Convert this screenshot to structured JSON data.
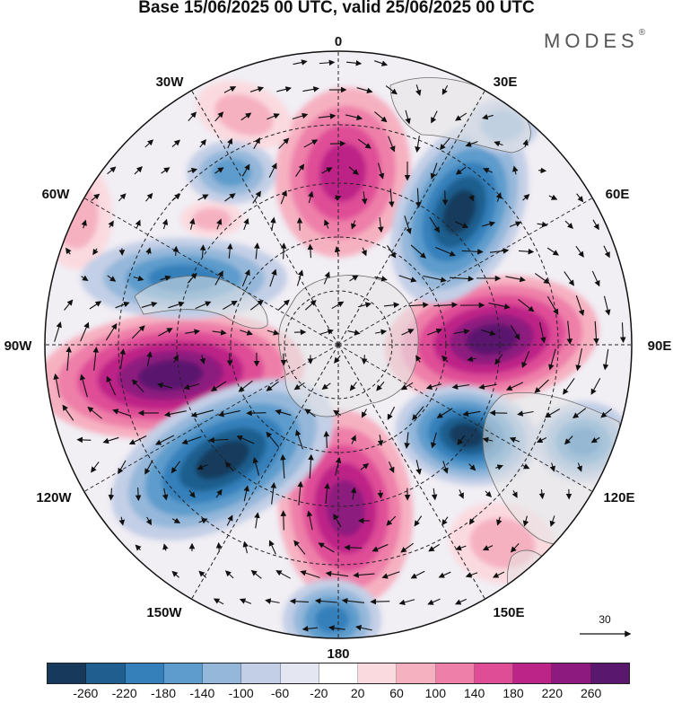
{
  "title": "Base 15/06/2025 00 UTC, valid 25/06/2025 00 UTC",
  "brand": {
    "name": "MODES",
    "mark": "®"
  },
  "longitude_labels": {
    "lon_0": "0",
    "lon_30e": "30E",
    "lon_60e": "60E",
    "lon_90e": "90E",
    "lon_120e": "120E",
    "lon_150e": "150E",
    "lon_180": "180",
    "lon_150w": "150W",
    "lon_120w": "120W",
    "lon_90w": "90W",
    "lon_60w": "60W",
    "lon_30w": "30W"
  },
  "reference_vector": {
    "label": "30"
  },
  "colorbar": {
    "ticks": [
      "-260",
      "-220",
      "-180",
      "-140",
      "-100",
      "-60",
      "-20",
      "20",
      "60",
      "100",
      "140",
      "180",
      "220",
      "260"
    ],
    "colors": [
      "#173a5c",
      "#1f5e8f",
      "#3580bb",
      "#5d9ccc",
      "#94b7da",
      "#c3cfe6",
      "#e4e6f2",
      "#ffffff",
      "#fbdadf",
      "#f6b1c1",
      "#ee7fa9",
      "#df4d97",
      "#bd2487",
      "#8d1a7f",
      "#5a176e"
    ]
  },
  "map_colors": {
    "land": "#e6e6e6",
    "coast": "#6b6b6b",
    "grid": "#222222",
    "vector": "#111111"
  }
}
